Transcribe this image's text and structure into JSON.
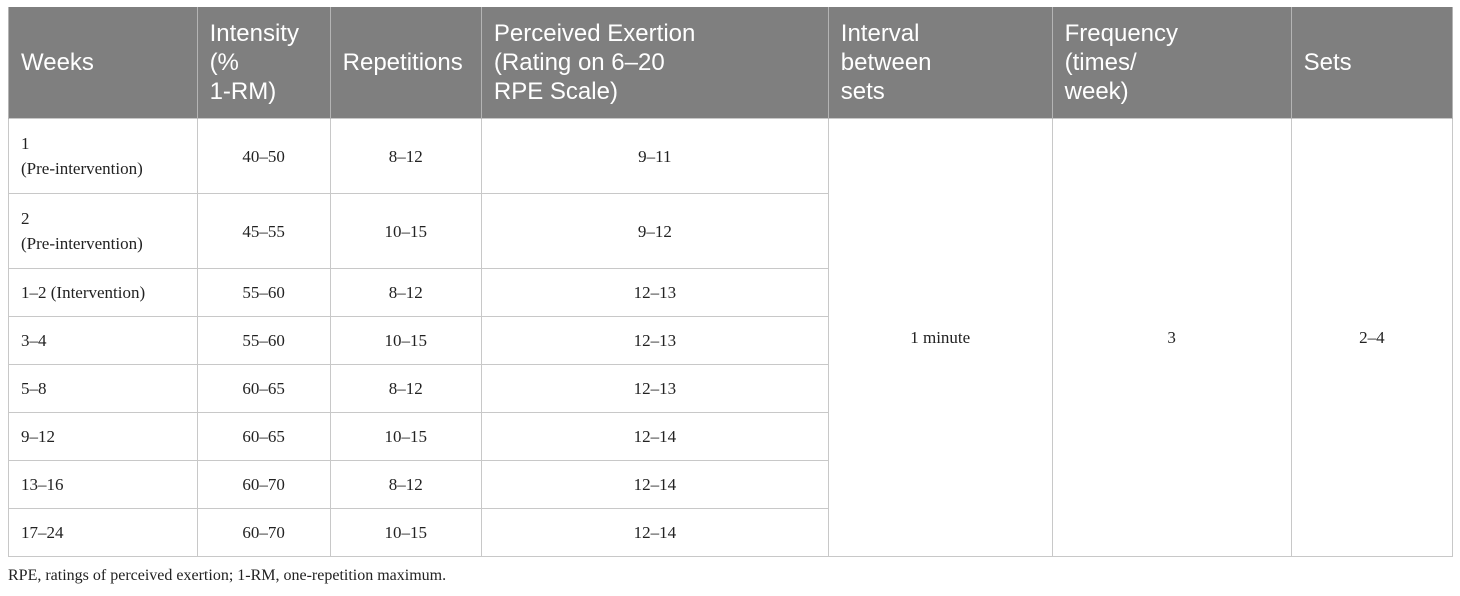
{
  "table": {
    "headers": {
      "weeks": "Weeks",
      "intensity": "Intensity\n(%\n1-RM)",
      "repetitions": "Repetitions",
      "exertion": "Perceived Exertion\n(Rating on 6–20\nRPE Scale)",
      "interval": "Interval\nbetween\nsets",
      "frequency": "Frequency\n(times/\nweek)",
      "sets": "Sets"
    },
    "rows": [
      {
        "weeks": "1\n(Pre-intervention)",
        "intensity": "40–50",
        "repetitions": "8–12",
        "exertion": "9–11"
      },
      {
        "weeks": "2\n(Pre-intervention)",
        "intensity": "45–55",
        "repetitions": "10–15",
        "exertion": "9–12"
      },
      {
        "weeks": "1–2 (Intervention)",
        "intensity": "55–60",
        "repetitions": "8–12",
        "exertion": "12–13"
      },
      {
        "weeks": "3–4",
        "intensity": "55–60",
        "repetitions": "10–15",
        "exertion": "12–13"
      },
      {
        "weeks": "5–8",
        "intensity": "60–65",
        "repetitions": "8–12",
        "exertion": "12–13"
      },
      {
        "weeks": "9–12",
        "intensity": "60–65",
        "repetitions": "10–15",
        "exertion": "12–14"
      },
      {
        "weeks": "13–16",
        "intensity": "60–70",
        "repetitions": "8–12",
        "exertion": "12–14"
      },
      {
        "weeks": "17–24",
        "intensity": "60–70",
        "repetitions": "10–15",
        "exertion": "12–14"
      }
    ],
    "merged": {
      "interval": "1 minute",
      "frequency": "3",
      "sets": "2–4"
    }
  },
  "footnote": "RPE, ratings of perceived exertion; 1-RM, one-repetition maximum."
}
